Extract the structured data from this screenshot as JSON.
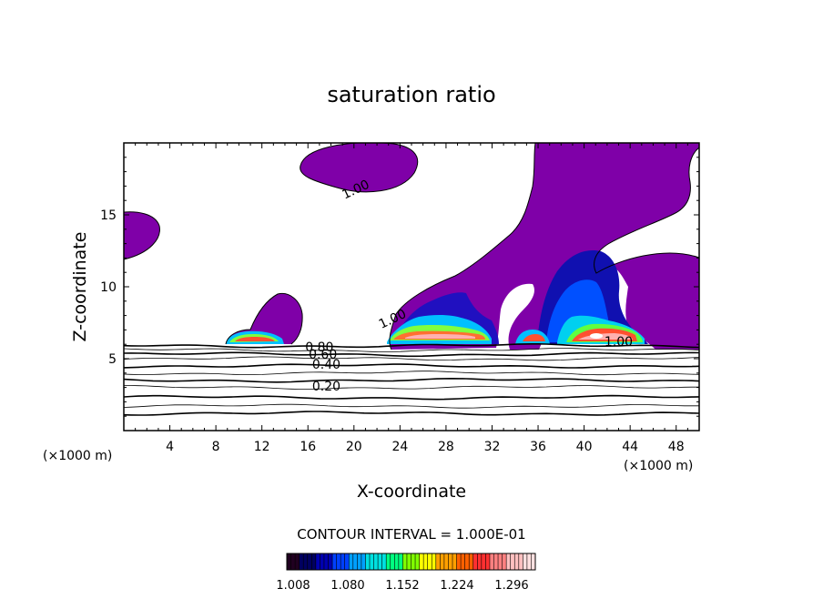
{
  "chart_data": {
    "type": "contour",
    "title": "saturation ratio",
    "xlabel": "X-coordinate",
    "ylabel": "Z-coordinate",
    "x_unit": "(×1000 m)",
    "z_unit": "(×1000 m)",
    "xlim": [
      0,
      50
    ],
    "ylim": [
      0,
      20
    ],
    "x_ticks": [
      4,
      8,
      12,
      16,
      20,
      24,
      28,
      32,
      36,
      40,
      44,
      48
    ],
    "y_ticks": [
      5,
      10,
      15
    ],
    "contour_interval_label": "CONTOUR INTERVAL = 1.000E-01",
    "colorbar": {
      "tick_labels": [
        "1.008",
        "1.080",
        "1.152",
        "1.224",
        "1.296"
      ],
      "colors": [
        "#200020",
        "#000060",
        "#0000b0",
        "#0040ff",
        "#00a0ff",
        "#00e0e0",
        "#00ff80",
        "#80ff00",
        "#ffff00",
        "#ffa000",
        "#ff6000",
        "#ff3030",
        "#ff8080",
        "#ffc0c0",
        "#ffe0e0"
      ]
    },
    "contour_labels": [
      {
        "text": "1.00",
        "x": 20.3,
        "z": 16.5
      },
      {
        "text": "1.00",
        "x": 23.5,
        "z": 7.5
      },
      {
        "text": "1.00",
        "x": 43.0,
        "z": 5.9
      },
      {
        "text": "0.80",
        "x": 17.0,
        "z": 5.5
      },
      {
        "text": "0.60",
        "x": 17.3,
        "z": 5.0
      },
      {
        "text": "0.40",
        "x": 17.6,
        "z": 4.3
      },
      {
        "text": "0.20",
        "x": 17.6,
        "z": 2.8
      }
    ],
    "subsaturated_contours_z": [
      1.2,
      1.7,
      2.3,
      3.0,
      3.5,
      4.0,
      4.5,
      5.0,
      5.3,
      5.6,
      5.9
    ],
    "grid": false
  }
}
